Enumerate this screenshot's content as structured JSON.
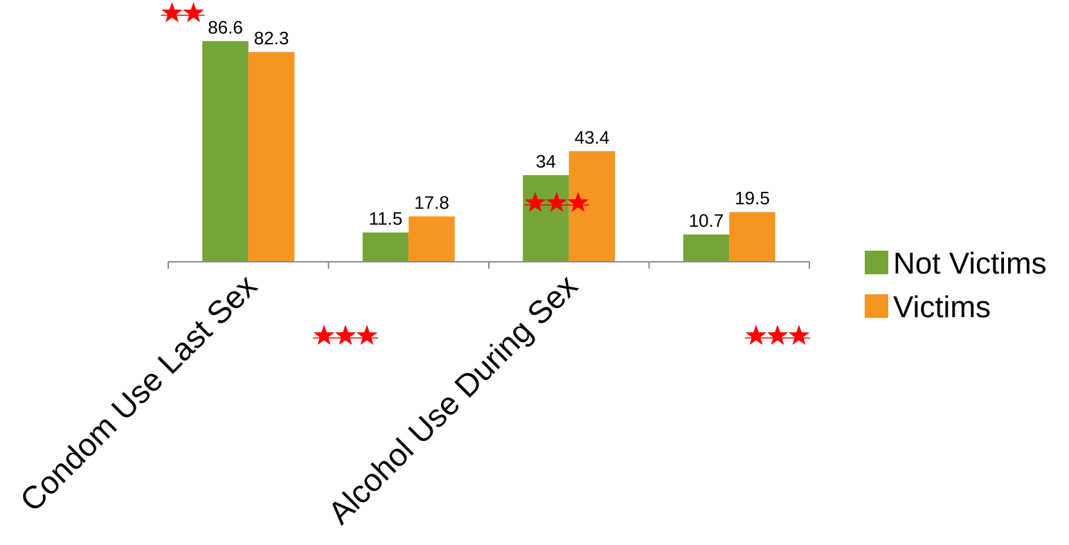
{
  "chart_data": {
    "type": "bar",
    "categories": [
      "Condom Use Last Sex",
      "",
      "Alcohol Use During Sex",
      ""
    ],
    "series": [
      {
        "name": "Not Victims",
        "color": "#77a437",
        "values": [
          86.6,
          11.5,
          34,
          10.7
        ]
      },
      {
        "name": "Victims",
        "color": "#f79522",
        "values": [
          82.3,
          17.8,
          43.4,
          19.5
        ]
      }
    ],
    "data_labels": [
      [
        "86.6",
        "11.5",
        "34",
        "10.7"
      ],
      [
        "82.3",
        "17.8",
        "43.4",
        "19.5"
      ]
    ],
    "ylim": [
      0,
      100
    ],
    "grid": false,
    "legend": "right",
    "significance_stars": [
      2,
      3,
      3,
      3
    ],
    "star_color": "#ff0000",
    "title": "",
    "xlabel": "",
    "ylabel": ""
  }
}
